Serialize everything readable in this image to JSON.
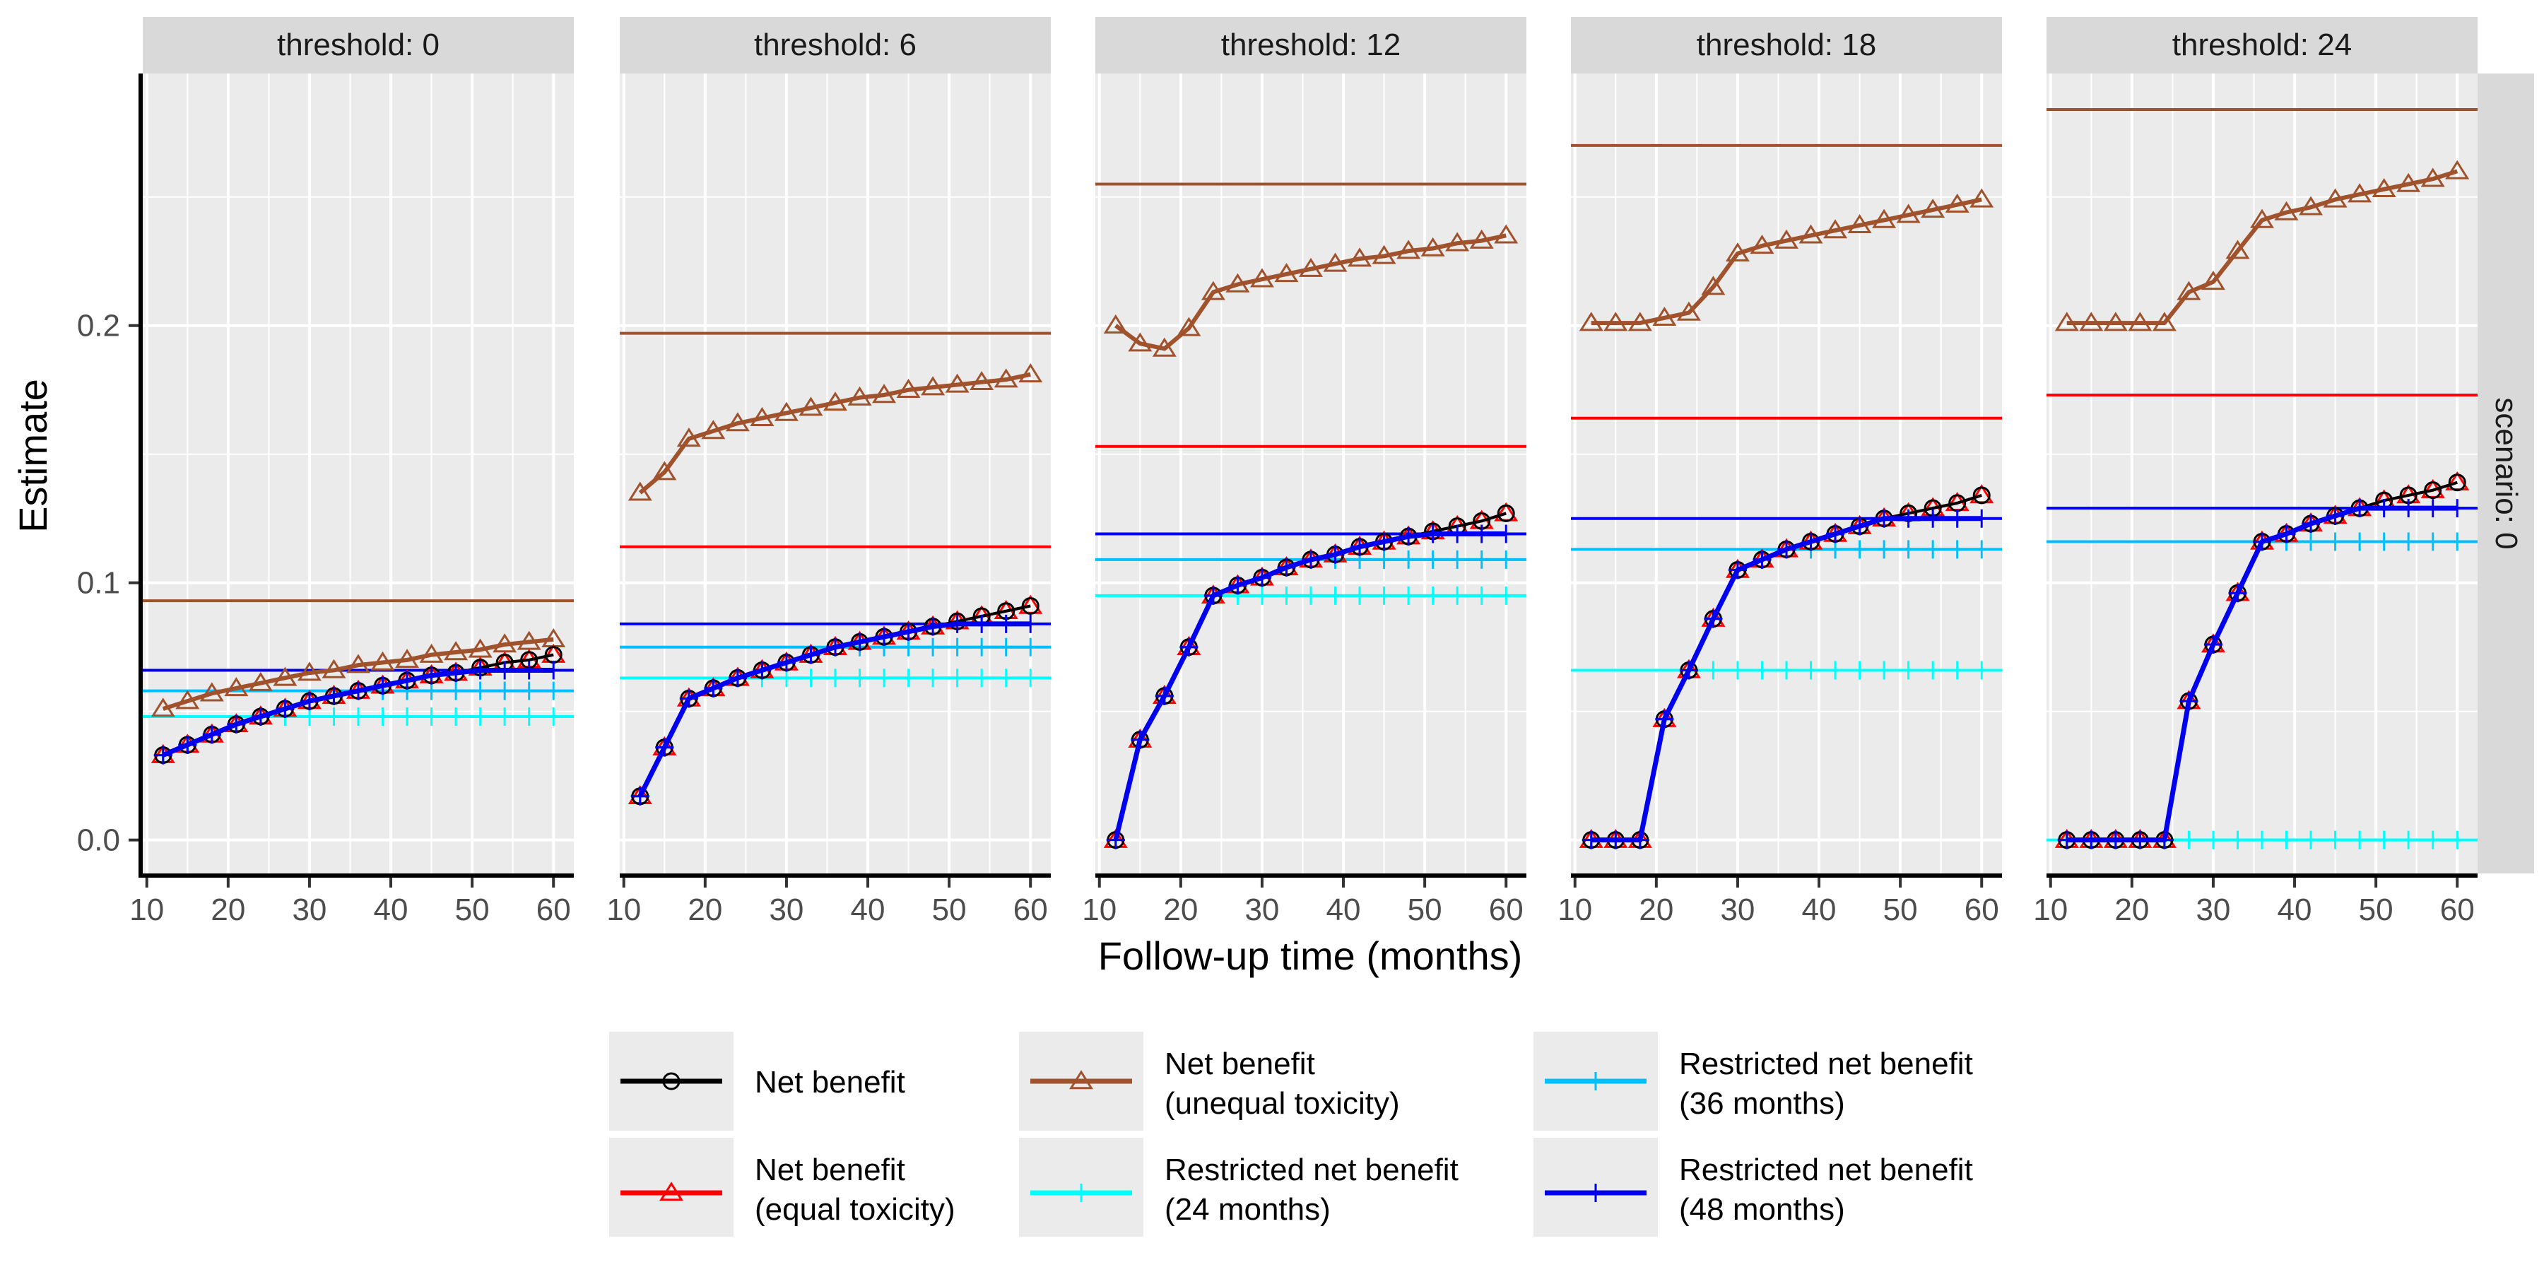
{
  "chart_data": {
    "type": "line",
    "xlabel": "Follow-up time (months)",
    "ylabel": "Estimate",
    "x_ticks": [
      10,
      20,
      30,
      40,
      50,
      60
    ],
    "y_ticks": [
      "0.0",
      "0.1",
      "0.2"
    ],
    "xlim": [
      9.5,
      62.5
    ],
    "ylim": [
      -0.013,
      0.298
    ],
    "row_strip": "scenario: 0",
    "colors": {
      "panel_bg": "#ebebeb",
      "grid": "#ffffff",
      "strip_bg": "#d9d9d9",
      "axis": "#000000"
    },
    "legend": [
      {
        "key": "nb",
        "label_lines": [
          "Net benefit"
        ],
        "color": "#000000",
        "marker": "circle"
      },
      {
        "key": "nb_eq",
        "label_lines": [
          "Net benefit",
          " (equal toxicity)"
        ],
        "color": "#ff0000",
        "marker": "triangle"
      },
      {
        "key": "nb_uneq",
        "label_lines": [
          "Net benefit",
          " (unequal toxicity)"
        ],
        "color": "#a0522d",
        "marker": "triangle"
      },
      {
        "key": "rnb24",
        "label_lines": [
          "Restricted net benefit",
          " (24 months)"
        ],
        "color": "#00ffff",
        "marker": "plus"
      },
      {
        "key": "rnb36",
        "label_lines": [
          "Restricted net benefit",
          " (36 months)"
        ],
        "color": "#00bfff",
        "marker": "plus"
      },
      {
        "key": "rnb48",
        "label_lines": [
          "Restricted net benefit",
          " (48 months)"
        ],
        "color": "#0000ee",
        "marker": "plus"
      }
    ],
    "x": [
      12,
      15,
      18,
      21,
      24,
      27,
      30,
      33,
      36,
      39,
      42,
      45,
      48,
      51,
      54,
      57,
      60
    ],
    "panels": [
      {
        "strip": "threshold: 0",
        "hlines": {
          "nb_uneq": 0.093,
          "nb_eq": 0.066,
          "rnb36": 0.058,
          "rnb24": 0.048,
          "rnb48": 0.066
        },
        "series": {
          "nb": [
            0.033,
            0.037,
            0.041,
            0.045,
            0.048,
            0.051,
            0.054,
            0.056,
            0.058,
            0.06,
            0.062,
            0.064,
            0.065,
            0.067,
            0.069,
            0.07,
            0.072
          ],
          "nb_eq": [
            0.033,
            0.037,
            0.041,
            0.045,
            0.048,
            0.051,
            0.054,
            0.056,
            0.058,
            0.06,
            0.062,
            0.064,
            0.065,
            0.067,
            0.069,
            0.07,
            0.072
          ],
          "nb_uneq": [
            0.051,
            0.054,
            0.057,
            0.059,
            0.061,
            0.063,
            0.065,
            0.066,
            0.068,
            0.069,
            0.07,
            0.072,
            0.073,
            0.074,
            0.076,
            0.077,
            0.078
          ],
          "rnb24": [
            0.033,
            0.037,
            0.041,
            0.045,
            0.048,
            0.048,
            0.048,
            0.048,
            0.048,
            0.048,
            0.048,
            0.048,
            0.048,
            0.048,
            0.048,
            0.048,
            0.048
          ],
          "rnb36": [
            0.033,
            0.037,
            0.041,
            0.045,
            0.048,
            0.051,
            0.054,
            0.056,
            0.058,
            0.058,
            0.058,
            0.058,
            0.058,
            0.058,
            0.058,
            0.058,
            0.058
          ],
          "rnb48": [
            0.033,
            0.037,
            0.041,
            0.045,
            0.048,
            0.051,
            0.054,
            0.056,
            0.058,
            0.06,
            0.062,
            0.064,
            0.065,
            0.066,
            0.066,
            0.066,
            0.066
          ]
        }
      },
      {
        "strip": "threshold: 6",
        "hlines": {
          "nb_uneq": 0.197,
          "nb_eq": 0.114,
          "rnb36": 0.075,
          "rnb24": 0.063,
          "rnb48": 0.084
        },
        "series": {
          "nb": [
            0.017,
            0.036,
            0.055,
            0.059,
            0.063,
            0.066,
            0.069,
            0.072,
            0.075,
            0.077,
            0.079,
            0.081,
            0.083,
            0.085,
            0.087,
            0.089,
            0.091
          ],
          "nb_eq": [
            0.017,
            0.036,
            0.055,
            0.059,
            0.063,
            0.066,
            0.069,
            0.072,
            0.075,
            0.077,
            0.079,
            0.081,
            0.083,
            0.085,
            0.087,
            0.089,
            0.091
          ],
          "nb_uneq": [
            0.135,
            0.143,
            0.156,
            0.159,
            0.162,
            0.164,
            0.166,
            0.168,
            0.17,
            0.172,
            0.173,
            0.175,
            0.176,
            0.177,
            0.178,
            0.179,
            0.181
          ],
          "rnb24": [
            0.017,
            0.036,
            0.055,
            0.059,
            0.063,
            0.063,
            0.063,
            0.063,
            0.063,
            0.063,
            0.063,
            0.063,
            0.063,
            0.063,
            0.063,
            0.063,
            0.063
          ],
          "rnb36": [
            0.017,
            0.036,
            0.055,
            0.059,
            0.063,
            0.066,
            0.069,
            0.072,
            0.075,
            0.075,
            0.075,
            0.075,
            0.075,
            0.075,
            0.075,
            0.075,
            0.075
          ],
          "rnb48": [
            0.017,
            0.036,
            0.055,
            0.059,
            0.063,
            0.066,
            0.069,
            0.072,
            0.075,
            0.077,
            0.079,
            0.081,
            0.083,
            0.084,
            0.084,
            0.084,
            0.084
          ]
        }
      },
      {
        "strip": "threshold: 12",
        "hlines": {
          "nb_uneq": 0.255,
          "nb_eq": 0.153,
          "rnb36": 0.109,
          "rnb24": 0.095,
          "rnb48": 0.119
        },
        "series": {
          "nb": [
            0.0,
            0.039,
            0.056,
            0.075,
            0.095,
            0.099,
            0.102,
            0.106,
            0.109,
            0.111,
            0.114,
            0.116,
            0.118,
            0.12,
            0.122,
            0.124,
            0.127
          ],
          "nb_eq": [
            0.0,
            0.039,
            0.056,
            0.075,
            0.095,
            0.099,
            0.102,
            0.106,
            0.109,
            0.111,
            0.114,
            0.116,
            0.118,
            0.12,
            0.122,
            0.124,
            0.127
          ],
          "nb_uneq": [
            0.2,
            0.193,
            0.191,
            0.199,
            0.213,
            0.216,
            0.218,
            0.22,
            0.222,
            0.224,
            0.226,
            0.227,
            0.229,
            0.23,
            0.232,
            0.233,
            0.235
          ],
          "rnb24": [
            0.0,
            0.039,
            0.056,
            0.075,
            0.095,
            0.095,
            0.095,
            0.095,
            0.095,
            0.095,
            0.095,
            0.095,
            0.095,
            0.095,
            0.095,
            0.095,
            0.095
          ],
          "rnb36": [
            0.0,
            0.039,
            0.056,
            0.075,
            0.095,
            0.099,
            0.102,
            0.106,
            0.109,
            0.109,
            0.109,
            0.109,
            0.109,
            0.109,
            0.109,
            0.109,
            0.109
          ],
          "rnb48": [
            0.0,
            0.039,
            0.056,
            0.075,
            0.095,
            0.099,
            0.102,
            0.106,
            0.109,
            0.111,
            0.114,
            0.116,
            0.118,
            0.119,
            0.119,
            0.119,
            0.119
          ]
        }
      },
      {
        "strip": "threshold: 18",
        "hlines": {
          "nb_uneq": 0.27,
          "nb_eq": 0.164,
          "rnb36": 0.113,
          "rnb24": 0.066,
          "rnb48": 0.125
        },
        "series": {
          "nb": [
            0.0,
            0.0,
            0.0,
            0.047,
            0.066,
            0.086,
            0.105,
            0.109,
            0.113,
            0.116,
            0.119,
            0.122,
            0.125,
            0.127,
            0.129,
            0.131,
            0.134
          ],
          "nb_eq": [
            0.0,
            0.0,
            0.0,
            0.047,
            0.066,
            0.086,
            0.105,
            0.109,
            0.113,
            0.116,
            0.119,
            0.122,
            0.125,
            0.127,
            0.129,
            0.131,
            0.134
          ],
          "nb_uneq": [
            0.201,
            0.201,
            0.201,
            0.203,
            0.205,
            0.215,
            0.228,
            0.231,
            0.233,
            0.235,
            0.237,
            0.239,
            0.241,
            0.243,
            0.245,
            0.247,
            0.249
          ],
          "rnb24": [
            0.0,
            0.0,
            0.0,
            0.047,
            0.066,
            0.066,
            0.066,
            0.066,
            0.066,
            0.066,
            0.066,
            0.066,
            0.066,
            0.066,
            0.066,
            0.066,
            0.066
          ],
          "rnb36": [
            0.0,
            0.0,
            0.0,
            0.047,
            0.066,
            0.086,
            0.105,
            0.109,
            0.113,
            0.113,
            0.113,
            0.113,
            0.113,
            0.113,
            0.113,
            0.113,
            0.113
          ],
          "rnb48": [
            0.0,
            0.0,
            0.0,
            0.047,
            0.066,
            0.086,
            0.105,
            0.109,
            0.113,
            0.116,
            0.119,
            0.122,
            0.125,
            0.125,
            0.125,
            0.125,
            0.125
          ]
        }
      },
      {
        "strip": "threshold: 24",
        "hlines": {
          "nb_uneq": 0.284,
          "nb_eq": 0.173,
          "rnb36": 0.116,
          "rnb24": 0.0,
          "rnb48": 0.129
        },
        "series": {
          "nb": [
            0.0,
            0.0,
            0.0,
            0.0,
            0.0,
            0.054,
            0.076,
            0.096,
            0.116,
            0.119,
            0.123,
            0.126,
            0.129,
            0.132,
            0.134,
            0.136,
            0.139
          ],
          "nb_eq": [
            0.0,
            0.0,
            0.0,
            0.0,
            0.0,
            0.054,
            0.076,
            0.096,
            0.116,
            0.119,
            0.123,
            0.126,
            0.129,
            0.132,
            0.134,
            0.136,
            0.139
          ],
          "nb_uneq": [
            0.201,
            0.201,
            0.201,
            0.201,
            0.201,
            0.213,
            0.217,
            0.229,
            0.241,
            0.244,
            0.246,
            0.249,
            0.251,
            0.253,
            0.255,
            0.257,
            0.26
          ],
          "rnb24": [
            0.0,
            0.0,
            0.0,
            0.0,
            0.0,
            0.0,
            0.0,
            0.0,
            0.0,
            0.0,
            0.0,
            0.0,
            0.0,
            0.0,
            0.0,
            0.0,
            0.0
          ],
          "rnb36": [
            0.0,
            0.0,
            0.0,
            0.0,
            0.0,
            0.054,
            0.076,
            0.096,
            0.116,
            0.116,
            0.116,
            0.116,
            0.116,
            0.116,
            0.116,
            0.116,
            0.116
          ],
          "rnb48": [
            0.0,
            0.0,
            0.0,
            0.0,
            0.0,
            0.054,
            0.076,
            0.096,
            0.116,
            0.119,
            0.123,
            0.126,
            0.129,
            0.129,
            0.129,
            0.129,
            0.129
          ]
        }
      }
    ]
  }
}
